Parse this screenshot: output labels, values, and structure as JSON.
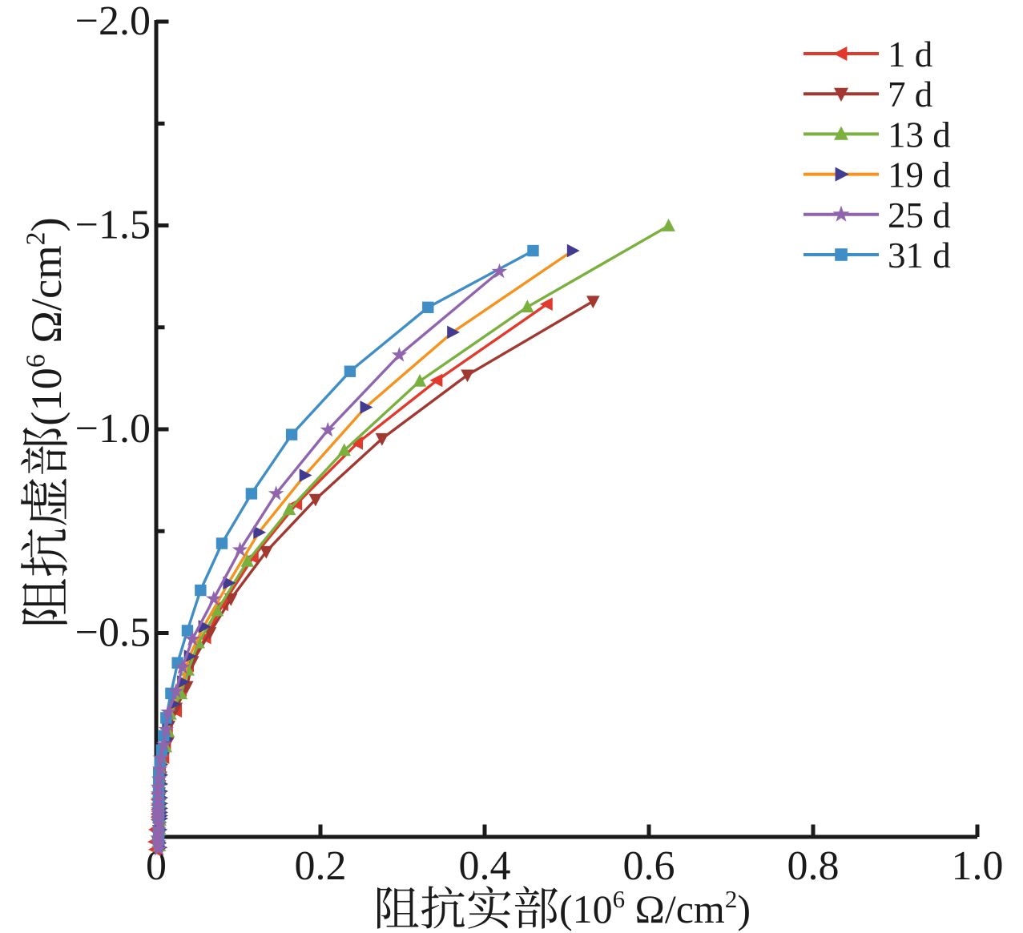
{
  "figure": {
    "background": "#ffffff",
    "text_color": "#1a1a1a"
  },
  "chart_data": {
    "type": "line",
    "title": "",
    "xlabel": "阻抗实部(10⁶ Ω/cm²)",
    "ylabel": "阻抗虚部(10⁶ Ω/cm²)",
    "xlim": [
      0,
      1.0
    ],
    "ylim_bottom_to_top": [
      0,
      -2.0
    ],
    "x_ticks": [
      0,
      0.2,
      0.4,
      0.6,
      0.8,
      1.0
    ],
    "x_tick_labels": [
      "0",
      "0.2",
      "0.4",
      "0.6",
      "0.8",
      "1.0"
    ],
    "y_ticks": [
      -0.5,
      -1.0,
      -1.5,
      -2.0
    ],
    "y_tick_labels": [
      "−0.5",
      "−1.0",
      "−1.5",
      "−2.0"
    ],
    "y_minor_ticks": [
      -0.25,
      -0.75,
      -1.25,
      -1.75
    ],
    "grid": false,
    "legend_position": "top-right",
    "legend_labels": [
      "1 d",
      "7 d",
      "13 d",
      "19 d",
      "25 d",
      "31 d"
    ],
    "series": [
      {
        "name": "1 d",
        "color": "#e2392d",
        "marker": "triangle-left",
        "marker_color": "#e2392d",
        "points": [
          [
            -0.001,
            0.031
          ],
          [
            -0.002,
            0.012
          ],
          [
            -0.001,
            -0.018
          ],
          [
            0.0019,
            -0.042
          ],
          [
            0.0019,
            -0.049
          ],
          [
            0.0019,
            -0.057
          ],
          [
            0.0019,
            -0.067
          ],
          [
            0.0019,
            -0.078
          ],
          [
            0.0019,
            -0.091
          ],
          [
            0.0019,
            -0.106
          ],
          [
            0.0034,
            -0.123
          ],
          [
            0.0042,
            -0.144
          ],
          [
            0.0051,
            -0.167
          ],
          [
            0.0092,
            -0.195
          ],
          [
            0.0113,
            -0.227
          ],
          [
            0.0136,
            -0.265
          ],
          [
            0.0246,
            -0.309
          ],
          [
            0.0303,
            -0.36
          ],
          [
            0.0392,
            -0.42
          ],
          [
            0.0602,
            -0.489
          ],
          [
            0.081,
            -0.57
          ],
          [
            0.118,
            -0.686
          ],
          [
            0.171,
            -0.817
          ],
          [
            0.245,
            -0.966
          ],
          [
            0.342,
            -1.12
          ],
          [
            0.476,
            -1.307
          ]
        ]
      },
      {
        "name": "7 d",
        "color": "#a23931",
        "marker": "triangle-down",
        "marker_color": "#a23931",
        "points": [
          [
            0.003,
            0.024
          ],
          [
            0.002,
            0.012
          ],
          [
            0.003,
            -0.016
          ],
          [
            0.0037,
            -0.043
          ],
          [
            0.0037,
            -0.05
          ],
          [
            0.0037,
            -0.059
          ],
          [
            0.0037,
            -0.068
          ],
          [
            0.0037,
            -0.08
          ],
          [
            0.0037,
            -0.093
          ],
          [
            0.0037,
            -0.108
          ],
          [
            0.0041,
            -0.126
          ],
          [
            0.0054,
            -0.147
          ],
          [
            0.0058,
            -0.172
          ],
          [
            0.009,
            -0.2
          ],
          [
            0.0144,
            -0.233
          ],
          [
            0.0154,
            -0.272
          ],
          [
            0.0242,
            -0.316
          ],
          [
            0.0374,
            -0.369
          ],
          [
            0.0442,
            -0.43
          ],
          [
            0.0654,
            -0.501
          ],
          [
            0.091,
            -0.584
          ],
          [
            0.134,
            -0.7
          ],
          [
            0.194,
            -0.828
          ],
          [
            0.275,
            -0.977
          ],
          [
            0.379,
            -1.133
          ],
          [
            0.532,
            -1.314
          ]
        ]
      },
      {
        "name": "13 d",
        "color": "#79b03e",
        "marker": "triangle-up",
        "marker_color": "#79b03e",
        "points": [
          [
            0.004,
            0.022
          ],
          [
            0.003,
            0.01
          ],
          [
            0.004,
            -0.02
          ],
          [
            0.0045,
            -0.041
          ],
          [
            0.0045,
            -0.048
          ],
          [
            0.0045,
            -0.056
          ],
          [
            0.0045,
            -0.065
          ],
          [
            0.0045,
            -0.076
          ],
          [
            0.0045,
            -0.088
          ],
          [
            0.0045,
            -0.103
          ],
          [
            0.0045,
            -0.12
          ],
          [
            0.0055,
            -0.14
          ],
          [
            0.0055,
            -0.163
          ],
          [
            0.0064,
            -0.19
          ],
          [
            0.0115,
            -0.221
          ],
          [
            0.0146,
            -0.258
          ],
          [
            0.0171,
            -0.301
          ],
          [
            0.0301,
            -0.351
          ],
          [
            0.0387,
            -0.409
          ],
          [
            0.0514,
            -0.476
          ],
          [
            0.074,
            -0.555
          ],
          [
            0.111,
            -0.676
          ],
          [
            0.162,
            -0.803
          ],
          [
            0.229,
            -0.948
          ],
          [
            0.321,
            -1.118
          ],
          [
            0.452,
            -1.3
          ],
          [
            0.624,
            -1.499
          ]
        ]
      },
      {
        "name": "19 d",
        "color": "#f6921e",
        "marker": "triangle-right",
        "marker_color": "#433b90",
        "points": [
          [
            0.005,
            0.026
          ],
          [
            0.004,
            0.014
          ],
          [
            0.005,
            -0.018
          ],
          [
            0.0058,
            -0.045
          ],
          [
            0.0058,
            -0.052
          ],
          [
            0.0058,
            -0.06
          ],
          [
            0.0058,
            -0.07
          ],
          [
            0.0058,
            -0.082
          ],
          [
            0.0058,
            -0.096
          ],
          [
            0.0058,
            -0.112
          ],
          [
            0.0058,
            -0.13
          ],
          [
            0.0058,
            -0.152
          ],
          [
            0.0058,
            -0.177
          ],
          [
            0.0078,
            -0.206
          ],
          [
            0.0128,
            -0.24
          ],
          [
            0.0138,
            -0.28
          ],
          [
            0.0212,
            -0.326
          ],
          [
            0.0322,
            -0.38
          ],
          [
            0.0405,
            -0.443
          ],
          [
            0.058,
            -0.516
          ],
          [
            0.088,
            -0.623
          ],
          [
            0.125,
            -0.747
          ],
          [
            0.181,
            -0.887
          ],
          [
            0.255,
            -1.054
          ],
          [
            0.361,
            -1.238
          ],
          [
            0.507,
            -1.438
          ]
        ]
      },
      {
        "name": "25 d",
        "color": "#9065ae",
        "marker": "star",
        "marker_color": "#9065ae",
        "points": [
          [
            0.0034,
            0.03
          ],
          [
            0.003,
            0.022
          ],
          [
            0.0025,
            0.014
          ],
          [
            0.002,
            0.003
          ],
          [
            0.0025,
            -0.008
          ],
          [
            0.003,
            -0.018
          ],
          [
            0.004,
            -0.03
          ],
          [
            0.0026,
            -0.042
          ],
          [
            0.0026,
            -0.049
          ],
          [
            0.0026,
            -0.057
          ],
          [
            0.0026,
            -0.066
          ],
          [
            0.0026,
            -0.077
          ],
          [
            0.0026,
            -0.09
          ],
          [
            0.0026,
            -0.105
          ],
          [
            0.0026,
            -0.122
          ],
          [
            0.0035,
            -0.142
          ],
          [
            0.0046,
            -0.166
          ],
          [
            0.0052,
            -0.193
          ],
          [
            0.0094,
            -0.226
          ],
          [
            0.0122,
            -0.263
          ],
          [
            0.0147,
            -0.306
          ],
          [
            0.0241,
            -0.357
          ],
          [
            0.0319,
            -0.416
          ],
          [
            0.044,
            -0.485
          ],
          [
            0.07,
            -0.584
          ],
          [
            0.102,
            -0.704
          ],
          [
            0.146,
            -0.842
          ],
          [
            0.209,
            -0.998
          ],
          [
            0.296,
            -1.182
          ],
          [
            0.418,
            -1.387
          ]
        ]
      },
      {
        "name": "31 d",
        "color": "#3f8ec5",
        "marker": "square",
        "marker_color": "#3f8ec5",
        "points": [
          [
            0.0029,
            0.006
          ],
          [
            0.0031,
            -0.012
          ],
          [
            0.0028,
            -0.046
          ],
          [
            0.0028,
            -0.054
          ],
          [
            0.0028,
            -0.062
          ],
          [
            0.0028,
            -0.073
          ],
          [
            0.0028,
            -0.085
          ],
          [
            0.0028,
            -0.099
          ],
          [
            0.003,
            -0.115
          ],
          [
            0.0031,
            -0.134
          ],
          [
            0.0031,
            -0.157
          ],
          [
            0.0046,
            -0.183
          ],
          [
            0.0067,
            -0.213
          ],
          [
            0.009,
            -0.248
          ],
          [
            0.012,
            -0.292
          ],
          [
            0.018,
            -0.352
          ],
          [
            0.026,
            -0.427
          ],
          [
            0.038,
            -0.506
          ],
          [
            0.054,
            -0.605
          ],
          [
            0.08,
            -0.72
          ],
          [
            0.116,
            -0.842
          ],
          [
            0.165,
            -0.987
          ],
          [
            0.236,
            -1.142
          ],
          [
            0.331,
            -1.299
          ],
          [
            0.459,
            -1.438
          ]
        ]
      }
    ]
  }
}
